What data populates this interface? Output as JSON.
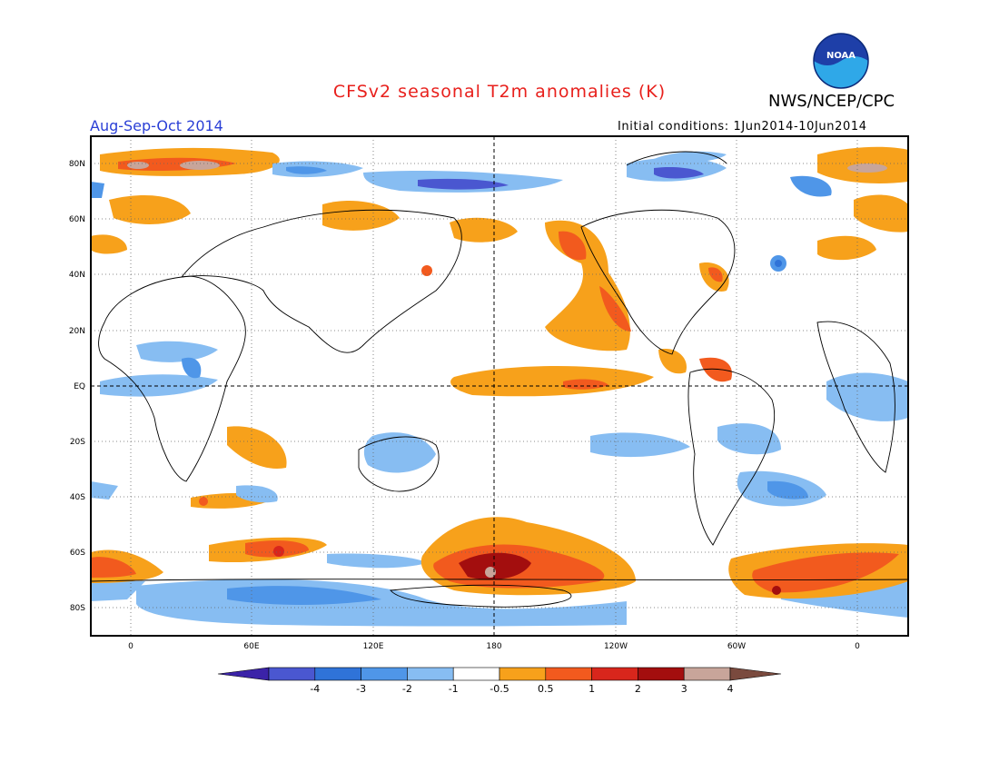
{
  "header": {
    "title": "CFSv2 seasonal T2m anomalies (K)",
    "agency": "NWS/NCEP/CPC",
    "logo_text": "NOAA",
    "season": "Aug-Sep-Oct 2014",
    "initial_conditions": "Initial conditions: 1Jun2014-10Jun2014"
  },
  "map": {
    "lat_ticks": [
      "80N",
      "60N",
      "40N",
      "20N",
      "EQ",
      "20S",
      "40S",
      "60S",
      "80S"
    ],
    "lon_ticks": [
      "0",
      "60E",
      "120E",
      "180",
      "120W",
      "60W",
      "0"
    ]
  },
  "colorbar": {
    "bins": [
      {
        "color": "#3b23a8"
      },
      {
        "color": "#4a57d0"
      },
      {
        "color": "#2f73d8"
      },
      {
        "color": "#4f96e8"
      },
      {
        "color": "#87bdf2"
      },
      {
        "color": "#ffffff"
      },
      {
        "color": "#f7a11b"
      },
      {
        "color": "#f25a1e"
      },
      {
        "color": "#d8261c"
      },
      {
        "color": "#a30e0e"
      },
      {
        "color": "#c8a59a"
      },
      {
        "color": "#7a4a3e"
      }
    ],
    "labels": [
      "-4",
      "-3",
      "-2",
      "-1",
      "-0.5",
      "0.5",
      "1",
      "2",
      "3",
      "4"
    ]
  }
}
